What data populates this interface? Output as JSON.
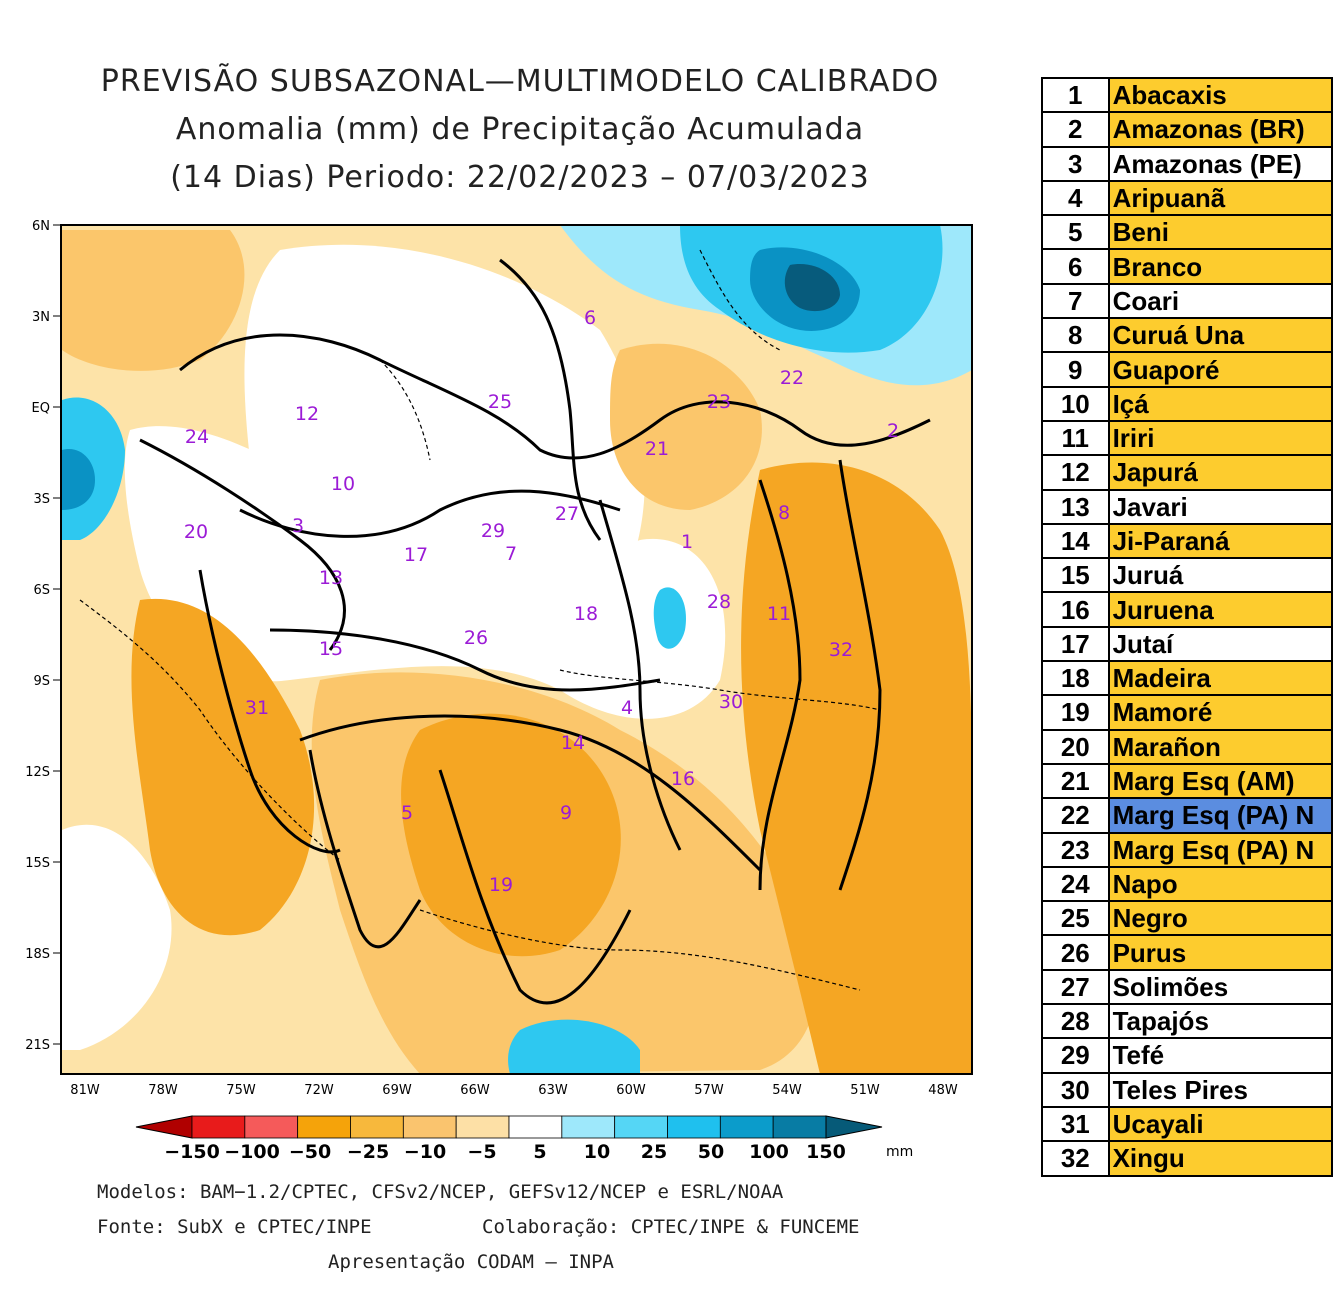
{
  "title": {
    "line1": "PREVISÃO SUBSAZONAL—MULTIMODELO CALIBRADO",
    "line2": "Anomalia (mm) de Precipitação Acumulada",
    "line3": "(14 Dias) Periodo: 22/02/2023 – 07/03/2023"
  },
  "map": {
    "lat_labels": [
      "6N",
      "3N",
      "EQ",
      "3S",
      "6S",
      "9S",
      "12S",
      "15S",
      "18S",
      "21S"
    ],
    "lon_labels": [
      "81W",
      "78W",
      "75W",
      "72W",
      "69W",
      "66W",
      "63W",
      "60W",
      "57W",
      "54W",
      "51W",
      "48W"
    ],
    "basin_labels": [
      "1",
      "2",
      "3",
      "4",
      "5",
      "6",
      "7",
      "8",
      "9",
      "10",
      "11",
      "12",
      "13",
      "14",
      "15",
      "16",
      "17",
      "18",
      "19",
      "20",
      "21",
      "22",
      "23",
      "24",
      "25",
      "26",
      "27",
      "28",
      "29",
      "30",
      "31",
      "32"
    ],
    "colors": {
      "dry_strong": "#f5a623",
      "dry_mid": "#fbc66b",
      "dry_light": "#fde3a8",
      "neutral": "#ffffff",
      "wet_light": "#9ee8fb",
      "wet_mid": "#2ec8f0",
      "wet_strong": "#0a92c4",
      "wet_darkest": "#075b7c",
      "basin_label": "#9b1bd6"
    }
  },
  "colorbar": {
    "ticks": [
      "−150",
      "−100",
      "−50",
      "−25",
      "−10",
      "−5",
      "5",
      "10",
      "25",
      "50",
      "100",
      "150"
    ],
    "unit": "mm",
    "colors": [
      "#b00000",
      "#e81b1b",
      "#f55a5a",
      "#f5a30a",
      "#f7b83c",
      "#fac46e",
      "#fde0a6",
      "#ffffff",
      "#9ee8fb",
      "#55d6f5",
      "#1fc0ee",
      "#0b9ccb",
      "#087ca4",
      "#065a78"
    ]
  },
  "credits": {
    "models": "Modelos: BAM−1.2/CPTEC, CFSv2/NCEP, GEFSv12/NCEP e ESRL/NOAA",
    "source": "Fonte: SubX e CPTEC/INPE",
    "collab": "Colaboração: CPTEC/INPE & FUNCEME",
    "presentation": "Apresentação CODAM – INPA"
  },
  "basins": [
    {
      "num": "1",
      "name": "Abacaxis",
      "color": "#fdcc2e"
    },
    {
      "num": "2",
      "name": "Amazonas (BR)",
      "color": "#fdcc2e"
    },
    {
      "num": "3",
      "name": "Amazonas (PE)",
      "color": "#ffffff"
    },
    {
      "num": "4",
      "name": "Aripuanã",
      "color": "#fdcc2e"
    },
    {
      "num": "5",
      "name": "Beni",
      "color": "#fdcc2e"
    },
    {
      "num": "6",
      "name": "Branco",
      "color": "#fdcc2e"
    },
    {
      "num": "7",
      "name": "Coari",
      "color": "#ffffff"
    },
    {
      "num": "8",
      "name": "Curuá Una",
      "color": "#fdcc2e"
    },
    {
      "num": "9",
      "name": "Guaporé",
      "color": "#fdcc2e"
    },
    {
      "num": "10",
      "name": "Içá",
      "color": "#fdcc2e"
    },
    {
      "num": "11",
      "name": "Iriri",
      "color": "#fdcc2e"
    },
    {
      "num": "12",
      "name": "Japurá",
      "color": "#fdcc2e"
    },
    {
      "num": "13",
      "name": "Javari",
      "color": "#ffffff"
    },
    {
      "num": "14",
      "name": "Ji-Paraná",
      "color": "#fdcc2e"
    },
    {
      "num": "15",
      "name": "Juruá",
      "color": "#ffffff"
    },
    {
      "num": "16",
      "name": "Juruena",
      "color": "#fdcc2e"
    },
    {
      "num": "17",
      "name": "Jutaí",
      "color": "#ffffff"
    },
    {
      "num": "18",
      "name": "Madeira",
      "color": "#fdcc2e"
    },
    {
      "num": "19",
      "name": "Mamoré",
      "color": "#fdcc2e"
    },
    {
      "num": "20",
      "name": "Marañon",
      "color": "#fdcc2e"
    },
    {
      "num": "21",
      "name": "Marg Esq (AM)",
      "color": "#fdcc2e"
    },
    {
      "num": "22",
      "name": "Marg Esq (PA) N",
      "color": "#5b8de0"
    },
    {
      "num": "23",
      "name": "Marg Esq (PA) N",
      "color": "#fdcc2e"
    },
    {
      "num": "24",
      "name": "Napo",
      "color": "#fdcc2e"
    },
    {
      "num": "25",
      "name": "Negro",
      "color": "#fdcc2e"
    },
    {
      "num": "26",
      "name": "Purus",
      "color": "#fdcc2e"
    },
    {
      "num": "27",
      "name": "Solimões",
      "color": "#ffffff"
    },
    {
      "num": "28",
      "name": "Tapajós",
      "color": "#ffffff"
    },
    {
      "num": "29",
      "name": "Tefé",
      "color": "#ffffff"
    },
    {
      "num": "30",
      "name": "Teles Pires",
      "color": "#ffffff"
    },
    {
      "num": "31",
      "name": "Ucayali",
      "color": "#fdcc2e"
    },
    {
      "num": "32",
      "name": "Xingu",
      "color": "#fdcc2e"
    }
  ]
}
